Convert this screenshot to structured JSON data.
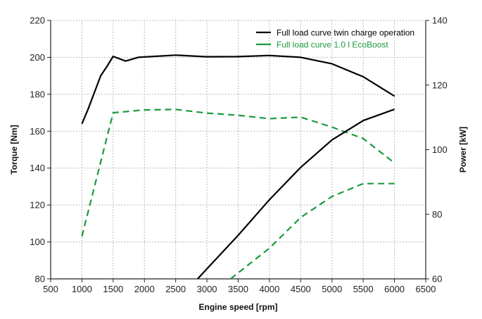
{
  "chart_data": {
    "type": "line",
    "xlabel": "Engine speed [rpm]",
    "ylabel_left": "Torque [Nm]",
    "ylabel_right": "Power [kW]",
    "xlim": [
      500,
      6500
    ],
    "ylim_left": [
      80,
      220
    ],
    "ylim_right": [
      60,
      140
    ],
    "x_ticks": [
      500,
      1000,
      1500,
      2000,
      2500,
      3000,
      3500,
      4000,
      4500,
      5000,
      5500,
      6000,
      6500
    ],
    "y_ticks_left": [
      80,
      100,
      120,
      140,
      160,
      180,
      200,
      220
    ],
    "y_ticks_right": [
      60,
      80,
      100,
      120,
      140
    ],
    "grid": true,
    "legend": {
      "placement": "top-right",
      "entries": [
        {
          "label": "Full load curve twin charge operation",
          "color": "#000000",
          "style": "solid"
        },
        {
          "label": "Full load curve 1.0 l EcoBoost",
          "color": "#1a9a3c",
          "style": "dashed"
        }
      ]
    },
    "series": [
      {
        "name": "Full load curve twin charge operation",
        "quantity": "torque",
        "axis": "left",
        "color": "#000000",
        "style": "solid",
        "x": [
          1000,
          1100,
          1300,
          1400,
          1500,
          1700,
          1900,
          2500,
          3000,
          3500,
          4000,
          4500,
          5000,
          5500,
          6000
        ],
        "y": [
          164,
          172,
          190,
          195,
          200.5,
          198,
          200,
          201.2,
          200.3,
          200.4,
          201,
          200,
          196.5,
          189.5,
          179
        ]
      },
      {
        "name": "Full load curve 1.0 l EcoBoost",
        "quantity": "torque",
        "axis": "left",
        "color": "#1a9a3c",
        "style": "dashed",
        "x": [
          1000,
          1500,
          2000,
          2500,
          3000,
          3500,
          4000,
          4500,
          5000,
          5500,
          6000
        ],
        "y": [
          103,
          170,
          171.5,
          171.8,
          169.8,
          168.6,
          166.8,
          167.6,
          162.2,
          156,
          142.8
        ]
      },
      {
        "name": "Full load curve twin charge operation",
        "quantity": "power",
        "axis": "right",
        "color": "#000000",
        "style": "solid",
        "x": [
          2850,
          3500,
          4000,
          4500,
          5000,
          5500,
          6000
        ],
        "y": [
          60,
          73.5,
          84.5,
          94.5,
          103,
          109,
          112.5
        ]
      },
      {
        "name": "Full load curve 1.0 l EcoBoost",
        "quantity": "power",
        "axis": "right",
        "color": "#1a9a3c",
        "style": "dashed",
        "x": [
          3380,
          4000,
          4500,
          5000,
          5500,
          6000
        ],
        "y": [
          60,
          69.5,
          79,
          85.5,
          89.5,
          89.5
        ]
      }
    ]
  }
}
